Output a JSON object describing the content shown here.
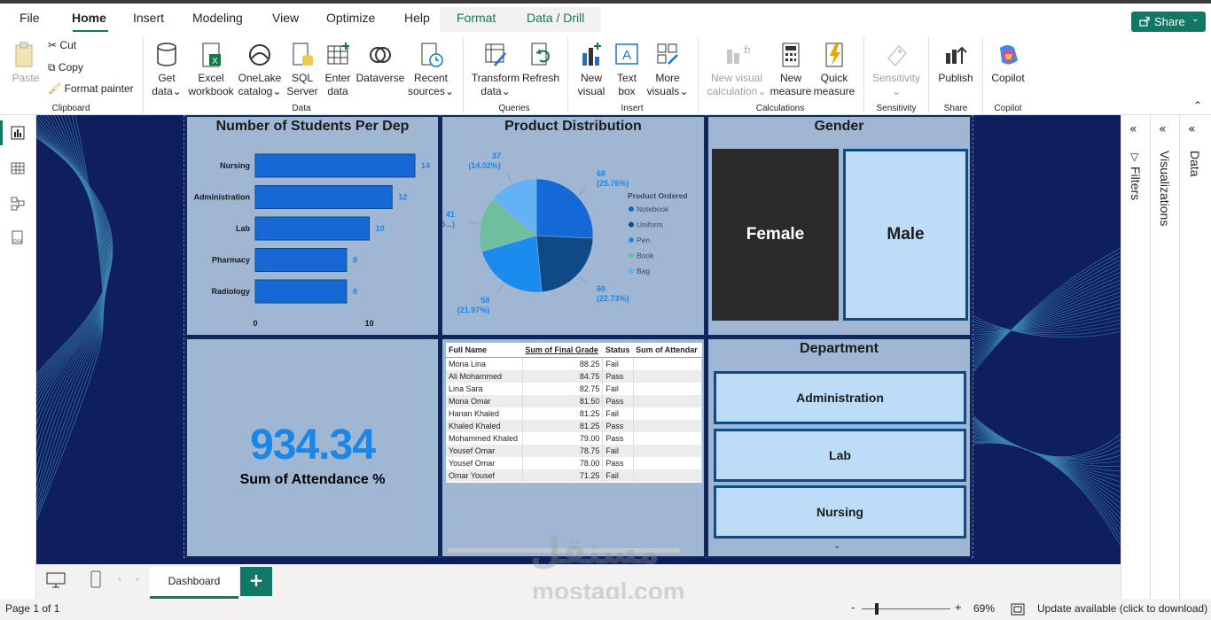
{
  "menu": {
    "items": [
      "File",
      "Home",
      "Insert",
      "Modeling",
      "View",
      "Optimize",
      "Help"
    ],
    "context": [
      "Format",
      "Data / Drill"
    ],
    "share": "Share"
  },
  "ribbon": {
    "clipboard": {
      "paste": "Paste",
      "cut": "Cut",
      "copy": "Copy",
      "format_painter": "Format painter",
      "group": "Clipboard"
    },
    "data": {
      "get_data": [
        "Get",
        "data"
      ],
      "excel": [
        "Excel",
        "workbook"
      ],
      "onelake": [
        "OneLake",
        "catalog"
      ],
      "sql": [
        "SQL",
        "Server"
      ],
      "enter": [
        "Enter",
        "data"
      ],
      "dataverse": "Dataverse",
      "recent": [
        "Recent",
        "sources"
      ],
      "group": "Data"
    },
    "queries": {
      "transform": [
        "Transform",
        "data"
      ],
      "refresh": "Refresh",
      "group": "Queries"
    },
    "insert": {
      "new_visual": [
        "New",
        "visual"
      ],
      "text_box": [
        "Text",
        "box"
      ],
      "more": [
        "More",
        "visuals"
      ],
      "group": "Insert"
    },
    "calculations": {
      "new_visual_calc": [
        "New visual",
        "calculation"
      ],
      "new_measure": [
        "New",
        "measure"
      ],
      "quick_measure": [
        "Quick",
        "measure"
      ],
      "group": "Calculations"
    },
    "sensitivity": {
      "label": "Sensitivity",
      "group": "Sensitivity"
    },
    "share": {
      "publish": "Publish",
      "group": "Share"
    },
    "copilot": {
      "label": "Copilot",
      "group": "Copilot"
    }
  },
  "students_chart": {
    "title": "Number of Students Per Dep",
    "chart_data": {
      "type": "bar",
      "categories": [
        "Nursing",
        "Administration",
        "Lab",
        "Pharmacy",
        "Radiology"
      ],
      "values": [
        14,
        12,
        10,
        8,
        8
      ],
      "xticks": [
        "0",
        "10"
      ],
      "xlim": [
        0,
        14
      ]
    }
  },
  "product_chart": {
    "title": "Product Distribution",
    "chart_data": {
      "type": "pie",
      "legend_title": "Product Ordered",
      "categories": [
        "Notebook",
        "Uniform",
        "Pen",
        "Book",
        "Bag"
      ],
      "values": [
        68,
        60,
        58,
        41,
        37
      ],
      "labels": [
        [
          "68",
          "(25.76%)"
        ],
        [
          "60",
          "(22.73%)"
        ],
        [
          "58",
          "(21.97%)"
        ],
        [
          "41",
          "(15...)"
        ],
        [
          "37",
          "(14.02%)"
        ]
      ],
      "colors": [
        "#1469d6",
        "#0f4a86",
        "#1a8cf0",
        "#6fbf9f",
        "#63b2f5"
      ]
    }
  },
  "gender": {
    "title": "Gender",
    "female": "Female",
    "male": "Male"
  },
  "attendance": {
    "value": "934.34",
    "label": "Sum of Attendance %"
  },
  "grades_table": {
    "headers": [
      "Full Name",
      "Sum of Final Grade",
      "Status",
      "Sum of Attendar"
    ],
    "rows": [
      [
        "Mona Lina",
        "88.25",
        "Fail",
        ""
      ],
      [
        "Ali Mohammed",
        "84.75",
        "Pass",
        ""
      ],
      [
        "Lina Sara",
        "82.75",
        "Fail",
        ""
      ],
      [
        "Mona Omar",
        "81.50",
        "Pass",
        ""
      ],
      [
        "Hanan Khaled",
        "81.25",
        "Fail",
        ""
      ],
      [
        "Khaled Khaled",
        "81.25",
        "Pass",
        ""
      ],
      [
        "Mohammed Khaled",
        "79.00",
        "Pass",
        ""
      ],
      [
        "Yousef Omar",
        "78.75",
        "Fail",
        ""
      ],
      [
        "Yousef Omar",
        "78.00",
        "Pass",
        ""
      ],
      [
        "Omar Yousef",
        "71.25",
        "Fail",
        ""
      ]
    ]
  },
  "department": {
    "title": "Department",
    "items": [
      "Administration",
      "Lab",
      "Nursing"
    ]
  },
  "panes": {
    "filters": "Filters",
    "visualizations": "Visualizations",
    "data": "Data"
  },
  "tabs": {
    "page": "Dashboard",
    "add": "+"
  },
  "status": {
    "page": "Page 1 of 1",
    "zoom": "69%",
    "update": "Update available (click to download)",
    "zoom_level": 0.69
  },
  "watermark": {
    "arabic": "مستقل",
    "latin": "mostaql.com"
  }
}
